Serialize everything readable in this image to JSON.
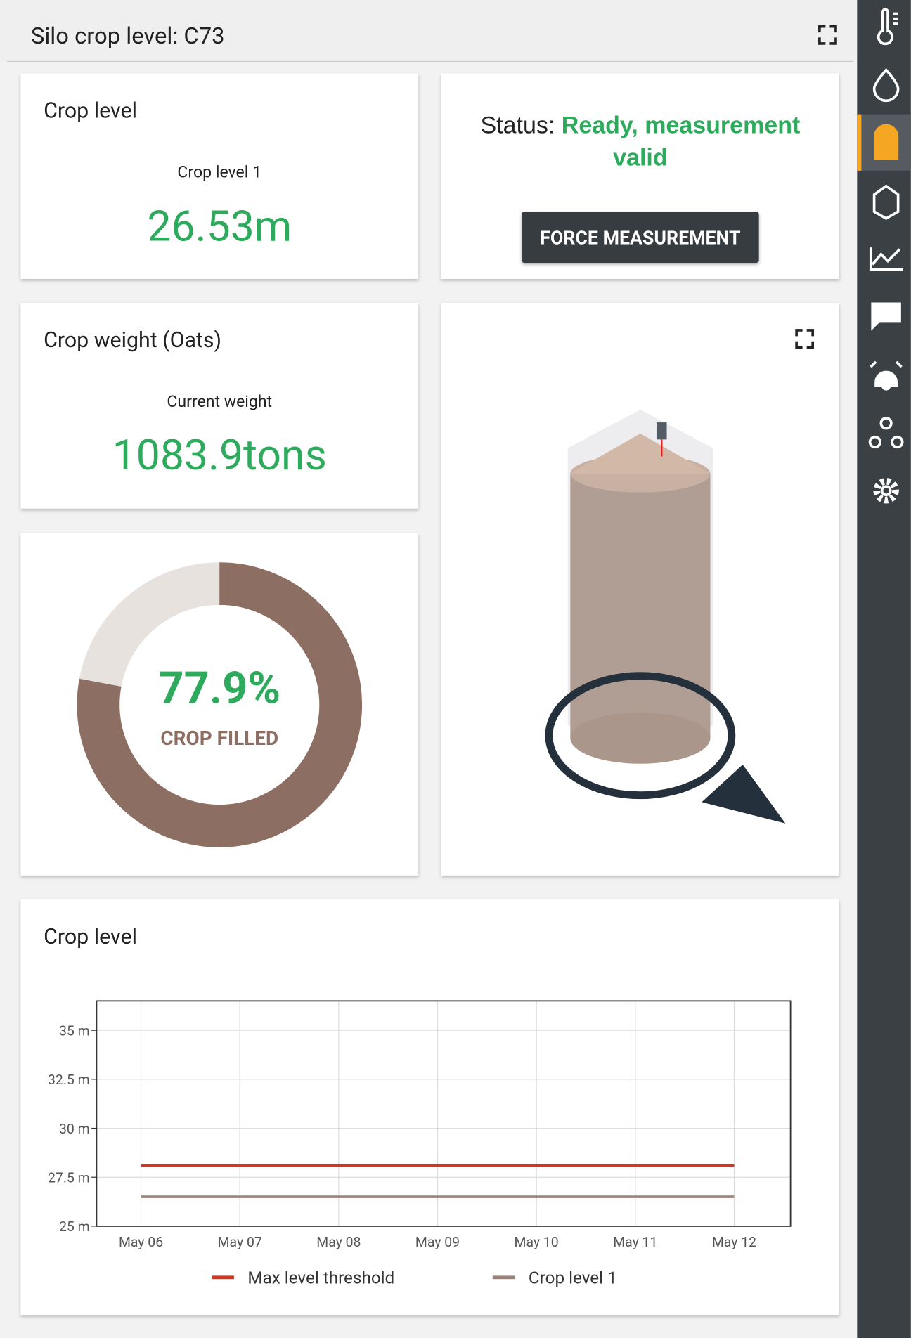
{
  "header": {
    "title": "Silo crop level: C73"
  },
  "level_card": {
    "title": "Crop level",
    "label": "Crop level 1",
    "value": "26.53m"
  },
  "status_card": {
    "label": "Status:",
    "status": "Ready, measurement valid",
    "button": "FORCE MEASUREMENT"
  },
  "weight_card": {
    "title": "Crop weight (Oats)",
    "label": "Current weight",
    "value": "1083.9tons"
  },
  "fill_gauge": {
    "value": 77.9,
    "value_label": "77.9%",
    "caption": "CROP FILLED"
  },
  "chart_data": {
    "type": "line",
    "title": "Crop level",
    "categories": [
      "May 06",
      "May 07",
      "May 08",
      "May 09",
      "May 10",
      "May 11",
      "May 12"
    ],
    "series": [
      {
        "name": "Max level threshold",
        "color": "#d2361e",
        "values": [
          28.1,
          28.1,
          28.1,
          28.1,
          28.1,
          28.1,
          28.1
        ]
      },
      {
        "name": "Crop level 1",
        "color": "#9c8379",
        "values": [
          26.5,
          26.5,
          26.5,
          26.5,
          26.5,
          26.5,
          26.5
        ]
      }
    ],
    "ylim": [
      25,
      36.5
    ],
    "yticks": [
      {
        "value": 25,
        "label": "25 m"
      },
      {
        "value": 27.5,
        "label": "27.5 m"
      },
      {
        "value": 30,
        "label": "30 m"
      },
      {
        "value": 32.5,
        "label": "32.5 m"
      },
      {
        "value": 35,
        "label": "35 m"
      }
    ],
    "grid": true
  }
}
